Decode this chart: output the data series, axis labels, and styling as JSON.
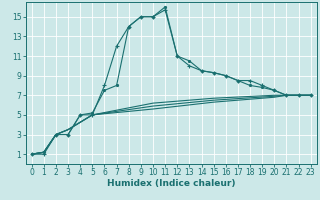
{
  "xlabel": "Humidex (Indice chaleur)",
  "bg_color": "#cce8e8",
  "grid_color": "#ffffff",
  "line_color": "#1a7070",
  "xlim": [
    -0.5,
    23.5
  ],
  "ylim": [
    0,
    16.5
  ],
  "xticks": [
    0,
    1,
    2,
    3,
    4,
    5,
    6,
    7,
    8,
    9,
    10,
    11,
    12,
    13,
    14,
    15,
    16,
    17,
    18,
    19,
    20,
    21,
    22,
    23
  ],
  "yticks": [
    1,
    3,
    5,
    7,
    9,
    11,
    13,
    15
  ],
  "series": [
    {
      "x": [
        0,
        1,
        2,
        3,
        4,
        5,
        6,
        7,
        8,
        9,
        10,
        11,
        12,
        13,
        14,
        15,
        16,
        17,
        18,
        19,
        20,
        21,
        22,
        23
      ],
      "y": [
        1,
        1,
        3,
        3,
        5,
        5,
        8,
        12,
        14,
        15,
        15,
        15.7,
        11,
        10,
        9.5,
        9.3,
        9,
        8.5,
        8.5,
        8,
        7.5,
        7,
        7,
        7
      ],
      "marker": "+",
      "ms": 3.5
    },
    {
      "x": [
        0,
        1,
        2,
        3,
        4,
        5,
        6,
        7,
        8,
        9,
        10,
        11,
        12,
        13,
        14,
        15,
        16,
        17,
        18,
        19,
        20,
        21,
        22,
        23
      ],
      "y": [
        1,
        1.2,
        3,
        3,
        5,
        5.2,
        7.5,
        8,
        14,
        15,
        15,
        16,
        11,
        10.5,
        9.5,
        9.3,
        9,
        8.5,
        8,
        7.8,
        7.5,
        7,
        7,
        7
      ],
      "marker": ".",
      "ms": 3.0
    },
    {
      "x": [
        0,
        1,
        2,
        3,
        5,
        10,
        15,
        20,
        21,
        22,
        23
      ],
      "y": [
        1,
        1.2,
        3,
        3.5,
        5,
        6.2,
        6.7,
        7.0,
        7.0,
        7.0,
        7.0
      ],
      "marker": null,
      "ms": 0
    },
    {
      "x": [
        0,
        1,
        2,
        3,
        5,
        10,
        15,
        20,
        21,
        22,
        23
      ],
      "y": [
        1,
        1.2,
        3,
        3.5,
        5,
        5.9,
        6.5,
        6.9,
        7.0,
        7.0,
        7.0
      ],
      "marker": null,
      "ms": 0
    },
    {
      "x": [
        0,
        1,
        2,
        3,
        5,
        10,
        15,
        20,
        21,
        22,
        23
      ],
      "y": [
        1,
        1.2,
        3,
        3.5,
        5,
        5.6,
        6.3,
        6.8,
        7.0,
        7.0,
        7.0
      ],
      "marker": null,
      "ms": 0
    }
  ]
}
